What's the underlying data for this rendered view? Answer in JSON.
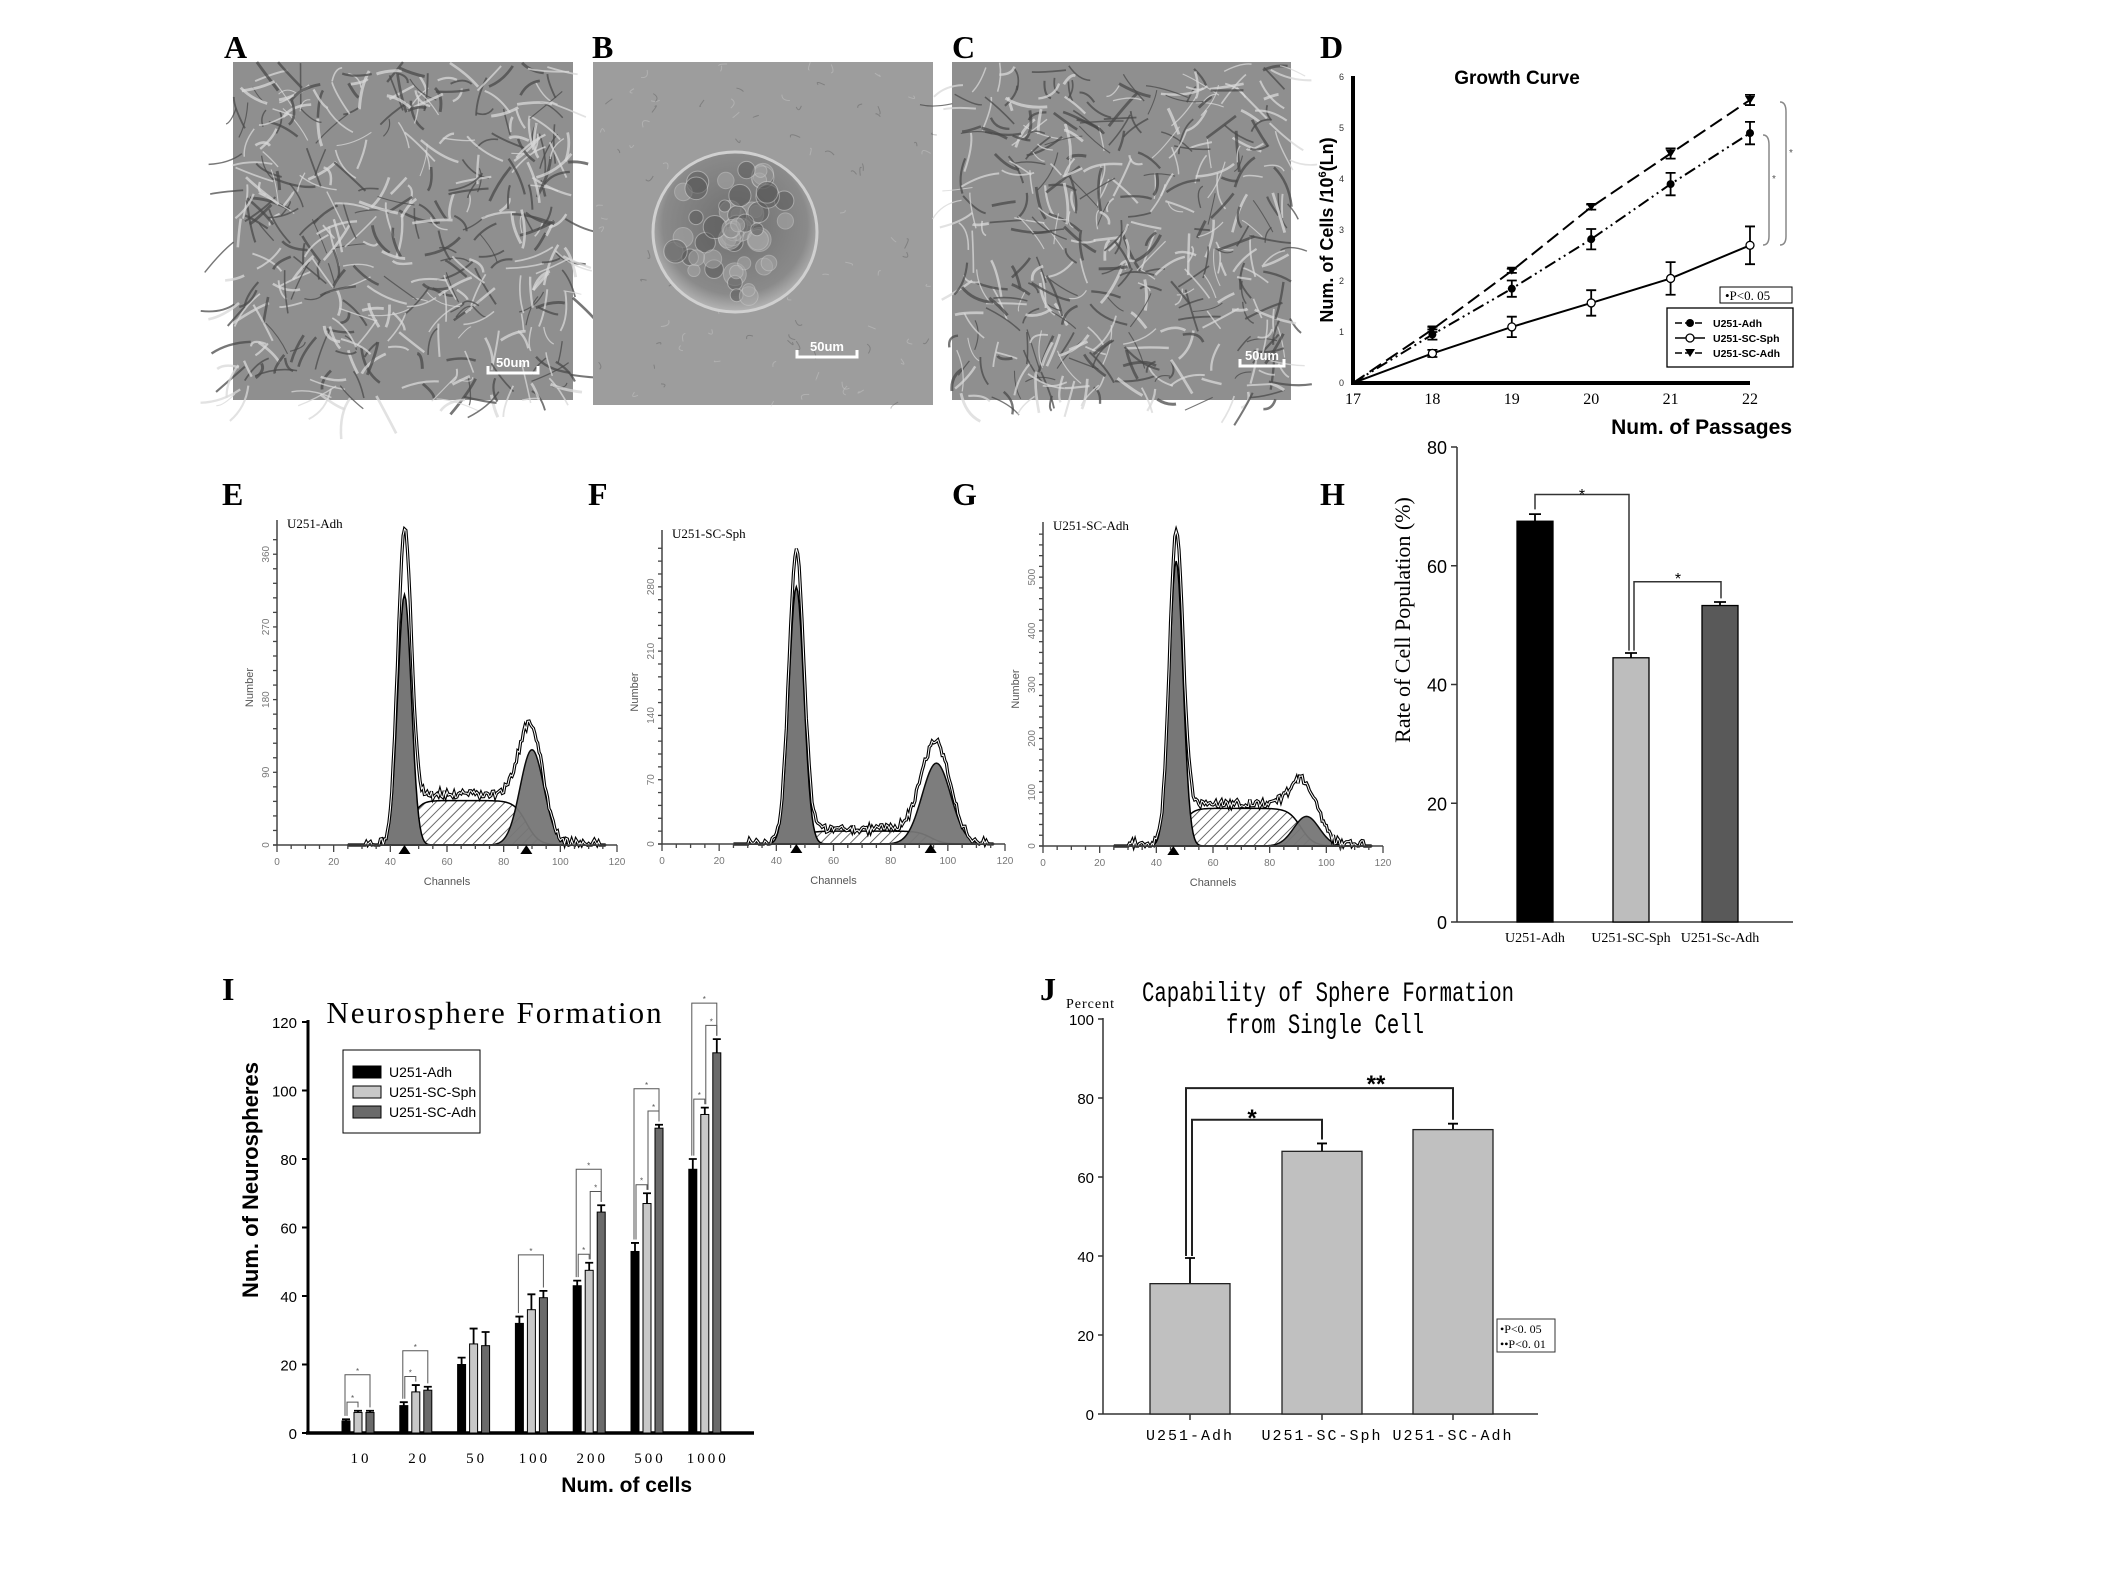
{
  "panel_labels": [
    "A",
    "B",
    "C",
    "D",
    "E",
    "F",
    "G",
    "H",
    "I",
    "J"
  ],
  "micrographs": [
    {
      "panel": "A",
      "kind": "adherent cells",
      "scale_bar": "50um"
    },
    {
      "panel": "B",
      "kind": "neurosphere",
      "scale_bar": "50um"
    },
    {
      "panel": "C",
      "kind": "adherent cells",
      "scale_bar": "50um"
    }
  ],
  "chart_data": [
    {
      "panel": "D",
      "type": "line",
      "title": "Growth Curve",
      "xlabel": "Num. of Passages",
      "ylabel_prefix": "Num. of Cells /10",
      "ylabel_sup": "6",
      "ylabel_suffix": "(Ln)",
      "x": [
        17,
        18,
        19,
        20,
        21,
        22
      ],
      "xlim": [
        17,
        22
      ],
      "ylim": [
        0,
        6
      ],
      "yticks": [
        "0",
        "1",
        "2",
        "3",
        "4",
        "5",
        "6"
      ],
      "xticks": [
        "17",
        "18",
        "19",
        "20",
        "21",
        "22"
      ],
      "series": [
        {
          "name": "U251-Adh",
          "marker": "filled-circle",
          "line": "dash-dot",
          "values": [
            0,
            0.95,
            1.85,
            2.82,
            3.9,
            4.9
          ],
          "errors": [
            0,
            0.1,
            0.16,
            0.2,
            0.22,
            0.22
          ]
        },
        {
          "name": "U251-SC-Sph",
          "marker": "open-circle",
          "line": "solid",
          "values": [
            0,
            0.58,
            1.1,
            1.57,
            2.05,
            2.7
          ],
          "errors": [
            0,
            0.07,
            0.2,
            0.25,
            0.32,
            0.37
          ]
        },
        {
          "name": "U251-SC-Adh",
          "marker": "filled-triangle-down",
          "line": "dashed",
          "values": [
            0,
            1.05,
            2.2,
            3.45,
            4.5,
            5.55
          ],
          "errors": [
            0,
            0.05,
            0.04,
            0.05,
            0.1,
            0.1
          ]
        }
      ],
      "significance_marks": [
        "*",
        "*"
      ],
      "p_note": "•P<0. 05",
      "legend_position": "bottom-right"
    },
    {
      "panel": "E",
      "type": "area",
      "title": "U251-Adh",
      "xlabel": "Channels",
      "ylabel": "Number",
      "xlim": [
        0,
        120
      ],
      "ylim": [
        0,
        400
      ],
      "xticks": [
        "0",
        "20",
        "40",
        "60",
        "80",
        "100",
        "120"
      ],
      "yticks": [
        "0",
        "90",
        "180",
        "270",
        "360"
      ],
      "ytick_step": 90,
      "g1": {
        "channel": 45,
        "count": 310,
        "outline_peak": 375,
        "width": 2.4
      },
      "g2": {
        "channel": 90,
        "count": 118,
        "outline_peak": 150,
        "width": 4.2
      },
      "s_phase_count": 55,
      "markers": [
        45,
        88
      ]
    },
    {
      "panel": "F",
      "type": "area",
      "title": "U251-SC-Sph",
      "xlabel": "Channels",
      "ylabel": "Number",
      "xlim": [
        0,
        120
      ],
      "ylim": [
        0,
        310
      ],
      "xticks": [
        "0",
        "20",
        "40",
        "60",
        "80",
        "100",
        "120"
      ],
      "yticks": [
        "0",
        "70",
        "140",
        "210",
        "280"
      ],
      "ytick_step": 70,
      "g1": {
        "channel": 47,
        "count": 280,
        "outline_peak": 316,
        "width": 2.6
      },
      "g2": {
        "channel": 96,
        "count": 88,
        "outline_peak": 110,
        "width": 5
      },
      "s_phase_count": 14,
      "markers": [
        47,
        94
      ]
    },
    {
      "panel": "G",
      "type": "area",
      "title": "U251-SC-Adh",
      "xlabel": "Channels",
      "ylabel": "Number",
      "xlim": [
        0,
        120
      ],
      "ylim": [
        0,
        580
      ],
      "xticks": [
        "0",
        "20",
        "40",
        "60",
        "80",
        "100",
        "120"
      ],
      "yticks": [
        "0",
        "100",
        "200",
        "300",
        "400",
        "500"
      ],
      "ytick_step": 100,
      "g1": {
        "channel": 47,
        "count": 530,
        "outline_peak": 565,
        "width": 2.4
      },
      "g2": {
        "channel": 93,
        "count": 55,
        "outline_peak": 120,
        "width": 4.5
      },
      "s_phase_count": 70,
      "markers": [
        46
      ]
    },
    {
      "panel": "H",
      "type": "bar",
      "ylabel": "Rate of Cell Population (%)",
      "categories": [
        "U251-Adh",
        "U251-SC-Sph",
        "U251-Sc-Adh"
      ],
      "values": [
        67.5,
        44.5,
        53.3
      ],
      "errors": [
        1.2,
        0.8,
        0.6
      ],
      "colors": [
        "#000000",
        "#bdbdbd",
        "#595959"
      ],
      "ylim": [
        0,
        80
      ],
      "yticks": [
        "0",
        "20",
        "40",
        "60",
        "80"
      ],
      "significance": [
        {
          "pair": [
            0,
            1
          ],
          "mark": "*"
        },
        {
          "pair": [
            1,
            2
          ],
          "mark": "*"
        }
      ]
    },
    {
      "panel": "I",
      "type": "bar",
      "title": "Neurosphere Formation",
      "xlabel": "Num. of cells",
      "ylabel": "Num. of Neurospheres",
      "categories": [
        "10",
        "20",
        "50",
        "100",
        "200",
        "500",
        "1000"
      ],
      "ylim": [
        0,
        120
      ],
      "yticks": [
        "0",
        "20",
        "40",
        "60",
        "80",
        "100",
        "120"
      ],
      "series": [
        {
          "name": "U251-Adh",
          "color": "#000000",
          "values": [
            3.5,
            8,
            20,
            32,
            43,
            53,
            77
          ],
          "errors": [
            0.5,
            1,
            2,
            2,
            1.5,
            2.5,
            3
          ]
        },
        {
          "name": "U251-SC-Sph",
          "color": "#c8c8c8",
          "values": [
            6,
            12,
            26,
            36,
            47.5,
            67,
            93
          ],
          "errors": [
            0.5,
            2,
            4.5,
            4.5,
            2.2,
            3,
            2
          ]
        },
        {
          "name": "U251-SC-Adh",
          "color": "#6a6a6a",
          "values": [
            6,
            12.5,
            25.5,
            39.5,
            64.5,
            89,
            111
          ],
          "errors": [
            0.5,
            1,
            4,
            2,
            2,
            1,
            4
          ]
        }
      ],
      "significance": [
        {
          "category": 0,
          "pairs": [
            [
              0,
              1
            ],
            [
              0,
              2
            ]
          ]
        },
        {
          "category": 1,
          "pairs": [
            [
              0,
              1
            ],
            [
              0,
              2
            ]
          ]
        },
        {
          "category": 3,
          "pairs": [
            [
              0,
              2
            ]
          ]
        },
        {
          "category": 4,
          "pairs": [
            [
              0,
              1
            ],
            [
              0,
              2
            ],
            [
              1,
              2
            ]
          ]
        },
        {
          "category": 5,
          "pairs": [
            [
              0,
              1
            ],
            [
              0,
              2
            ],
            [
              1,
              2
            ]
          ]
        },
        {
          "category": 6,
          "pairs": [
            [
              0,
              1
            ],
            [
              0,
              2
            ],
            [
              1,
              2
            ]
          ]
        }
      ],
      "significance_mark": "*",
      "legend_position": "top-left"
    },
    {
      "panel": "J",
      "type": "bar",
      "title_line1": "Capability of Sphere Formation",
      "title_line2": "from Single Cell",
      "ylabel": "Percent",
      "categories": [
        "U251-Adh",
        "U251-SC-Sph",
        "U251-SC-Adh"
      ],
      "values": [
        33,
        66.5,
        72
      ],
      "errors": [
        6.5,
        2,
        1.5
      ],
      "colors": [
        "#c0c0c0",
        "#c0c0c0",
        "#c0c0c0"
      ],
      "ylim": [
        0,
        100
      ],
      "yticks": [
        "0",
        "20",
        "40",
        "60",
        "80",
        "100"
      ],
      "significance": [
        {
          "pair": [
            0,
            1
          ],
          "mark": "*"
        },
        {
          "pair": [
            0,
            2
          ],
          "mark": "**"
        }
      ],
      "p_notes": [
        "•P<0. 05",
        "••P<0. 01"
      ]
    }
  ]
}
